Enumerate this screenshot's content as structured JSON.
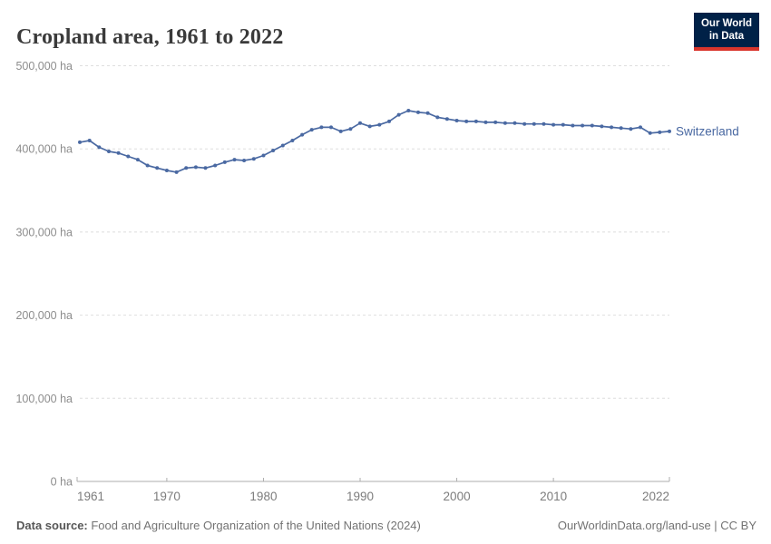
{
  "header": {
    "title": "Cropland area, 1961 to 2022",
    "logo": {
      "line1": "Our World",
      "line2": "in Data",
      "bg_color": "#002147",
      "accent_color": "#d9352c"
    }
  },
  "chart_data": {
    "type": "line",
    "title": "Cropland area, 1961 to 2022",
    "xlabel": "",
    "ylabel": "",
    "xlim": [
      1961,
      2022
    ],
    "ylim": [
      0,
      500000
    ],
    "grid": "horizontal-dashed",
    "legend_position": "end-of-line-label",
    "x_ticks": [
      1961,
      1970,
      1980,
      1990,
      2000,
      2010,
      2022
    ],
    "y_ticks": [
      {
        "value": 0,
        "label": "0 ha"
      },
      {
        "value": 100000,
        "label": "100,000 ha"
      },
      {
        "value": 200000,
        "label": "200,000 ha"
      },
      {
        "value": 300000,
        "label": "300,000 ha"
      },
      {
        "value": 400000,
        "label": "400,000 ha"
      },
      {
        "value": 500000,
        "label": "500,000 ha"
      }
    ],
    "series": [
      {
        "name": "Switzerland",
        "color": "#4a69a2",
        "unit": "ha",
        "x": [
          1961,
          1962,
          1963,
          1964,
          1965,
          1966,
          1967,
          1968,
          1969,
          1970,
          1971,
          1972,
          1973,
          1974,
          1975,
          1976,
          1977,
          1978,
          1979,
          1980,
          1981,
          1982,
          1983,
          1984,
          1985,
          1986,
          1987,
          1988,
          1989,
          1990,
          1991,
          1992,
          1993,
          1994,
          1995,
          1996,
          1997,
          1998,
          1999,
          2000,
          2001,
          2002,
          2003,
          2004,
          2005,
          2006,
          2007,
          2008,
          2009,
          2010,
          2011,
          2012,
          2013,
          2014,
          2015,
          2016,
          2017,
          2018,
          2019,
          2020,
          2021,
          2022
        ],
        "values": [
          408000,
          410000,
          402000,
          397000,
          395000,
          391000,
          387000,
          380000,
          377000,
          374000,
          372000,
          377000,
          378000,
          377000,
          380000,
          384000,
          387000,
          386000,
          388000,
          392000,
          398000,
          404000,
          410000,
          417000,
          423000,
          426000,
          426000,
          421000,
          424000,
          431000,
          427000,
          429000,
          433000,
          441000,
          446000,
          444000,
          443000,
          438000,
          436000,
          434000,
          433000,
          433000,
          432000,
          432000,
          431000,
          431000,
          430000,
          430000,
          430000,
          429000,
          429000,
          428000,
          428000,
          428000,
          427000,
          426000,
          425000,
          424000,
          426000,
          419000,
          420000,
          421000
        ]
      }
    ]
  },
  "footer": {
    "datasource_label": "Data source:",
    "datasource": " Food and Agriculture Organization of the United Nations (2024)",
    "rights": "OurWorldinData.org/land-use | CC BY"
  },
  "colors": {
    "line": "#4a69a2",
    "gridline": "#dedede",
    "axis": "#adadad",
    "y_tick_text": "#8d8d8d",
    "x_tick_text": "#7c7c7c",
    "title_text": "#3a3a3a"
  }
}
